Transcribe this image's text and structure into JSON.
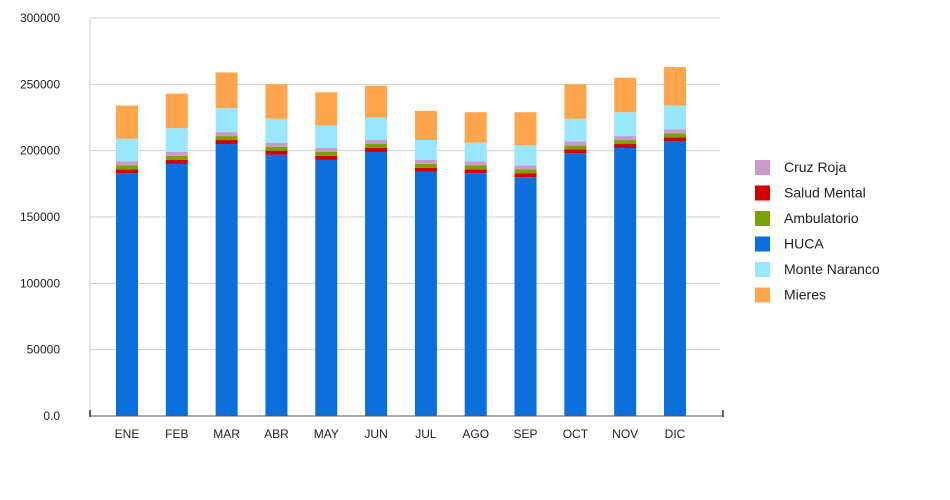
{
  "chart_data": {
    "type": "bar",
    "stacked": true,
    "title": "",
    "xlabel": "",
    "ylabel": "",
    "ylim": [
      0,
      300000
    ],
    "grid": true,
    "legend_position": "right",
    "y_ticks": [
      0,
      50000,
      100000,
      150000,
      200000,
      250000,
      300000
    ],
    "y_tick_labels": [
      "0.0",
      "50000",
      "100000",
      "150000",
      "200000",
      "250000",
      "300000"
    ],
    "categories": [
      "ENE",
      "FEB",
      "MAR",
      "ABR",
      "MAY",
      "JUN",
      "JUL",
      "AGO",
      "SEP",
      "OCT",
      "NOV",
      "DIC"
    ],
    "series": [
      {
        "name": "HUCA",
        "color": "#0a6fdb",
        "values": [
          183000,
          190000,
          205000,
          197000,
          193000,
          199000,
          184000,
          183000,
          180000,
          198000,
          202000,
          207000
        ]
      },
      {
        "name": "Salud Mental",
        "color": "#d40000",
        "values": [
          3000,
          3000,
          3000,
          3000,
          3000,
          3000,
          3000,
          3000,
          3000,
          3000,
          3000,
          3000
        ]
      },
      {
        "name": "Ambulatorio",
        "color": "#7aa300",
        "values": [
          3000,
          3000,
          3000,
          3000,
          3000,
          3000,
          3000,
          3000,
          3000,
          3000,
          3000,
          3000
        ]
      },
      {
        "name": "Cruz Roja",
        "color": "#cc99cc",
        "values": [
          3000,
          3000,
          3000,
          3000,
          3000,
          3000,
          3000,
          3000,
          3000,
          3000,
          3000,
          3000
        ]
      },
      {
        "name": "Monte Naranco",
        "color": "#99e6ff",
        "values": [
          17000,
          18000,
          18000,
          18000,
          17000,
          17000,
          15000,
          14000,
          15000,
          17000,
          18000,
          18000
        ]
      },
      {
        "name": "Mieres",
        "color": "#ffa64d",
        "values": [
          25000,
          26000,
          27000,
          26000,
          25000,
          24000,
          22000,
          23000,
          25000,
          26000,
          26000,
          29000
        ]
      }
    ],
    "legend_order": [
      "Cruz Roja",
      "Salud Mental",
      "Ambulatorio",
      "HUCA",
      "Monte Naranco",
      "Mieres"
    ]
  }
}
